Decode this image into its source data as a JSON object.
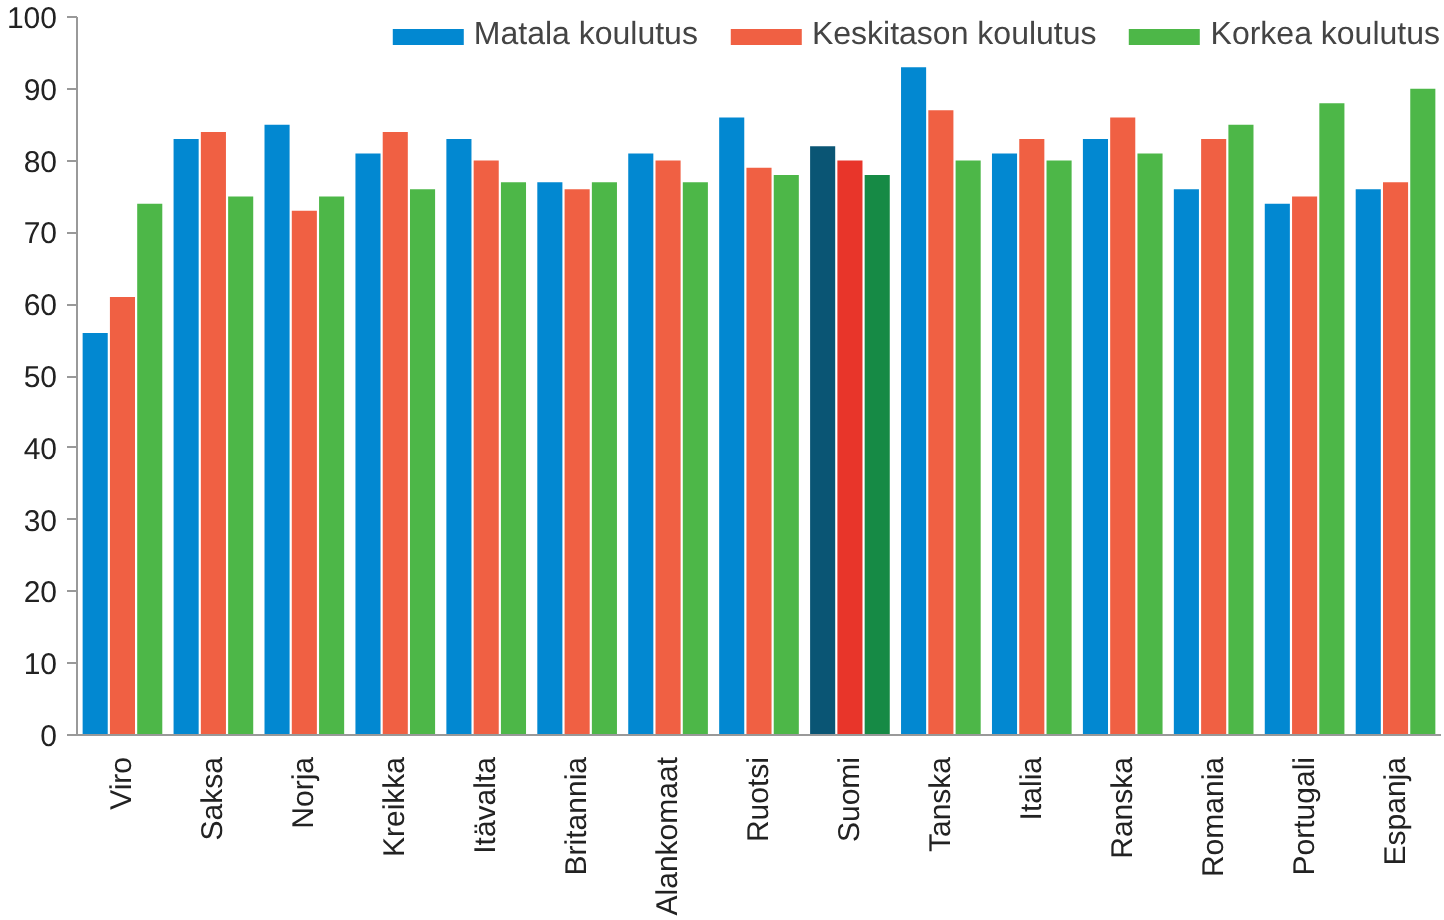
{
  "chart_data": {
    "type": "bar",
    "categories": [
      "Viro",
      "Saksa",
      "Norja",
      "Kreikka",
      "Itävalta",
      "Britannia",
      "Alankomaat",
      "Ruotsi",
      "Suomi",
      "Tanska",
      "Italia",
      "Ranska",
      "Romania",
      "Portugali",
      "Espanja"
    ],
    "series": [
      {
        "name": "Matala koulutus",
        "color": "#0288d1",
        "colors": [
          "#0288d1",
          "#0288d1",
          "#0288d1",
          "#0288d1",
          "#0288d1",
          "#0288d1",
          "#0288d1",
          "#0288d1",
          "#0a5574",
          "#0288d1",
          "#0288d1",
          "#0288d1",
          "#0288d1",
          "#0288d1",
          "#0288d1"
        ],
        "values": [
          56,
          83,
          85,
          81,
          83,
          77,
          81,
          86,
          82,
          93,
          81,
          83,
          76,
          74,
          76
        ]
      },
      {
        "name": "Keskitason koulutus",
        "color": "#f06043",
        "colors": [
          "#f06043",
          "#f06043",
          "#f06043",
          "#f06043",
          "#f06043",
          "#f06043",
          "#f06043",
          "#f06043",
          "#e8352a",
          "#f06043",
          "#f06043",
          "#f06043",
          "#f06043",
          "#f06043",
          "#f06043"
        ],
        "values": [
          61,
          84,
          73,
          84,
          80,
          76,
          80,
          79,
          80,
          87,
          83,
          86,
          83,
          75,
          77
        ]
      },
      {
        "name": "Korkea koulutus",
        "color": "#4db748",
        "colors": [
          "#4db748",
          "#4db748",
          "#4db748",
          "#4db748",
          "#4db748",
          "#4db748",
          "#4db748",
          "#4db748",
          "#168a45",
          "#4db748",
          "#4db748",
          "#4db748",
          "#4db748",
          "#4db748",
          "#4db748"
        ],
        "values": [
          74,
          75,
          75,
          76,
          77,
          77,
          77,
          78,
          78,
          80,
          80,
          81,
          85,
          88,
          90
        ]
      }
    ],
    "ylim": [
      0,
      100
    ],
    "yticks": [
      0,
      10,
      20,
      30,
      40,
      50,
      60,
      70,
      80,
      90,
      100
    ],
    "grid": false,
    "legend": "top right"
  }
}
